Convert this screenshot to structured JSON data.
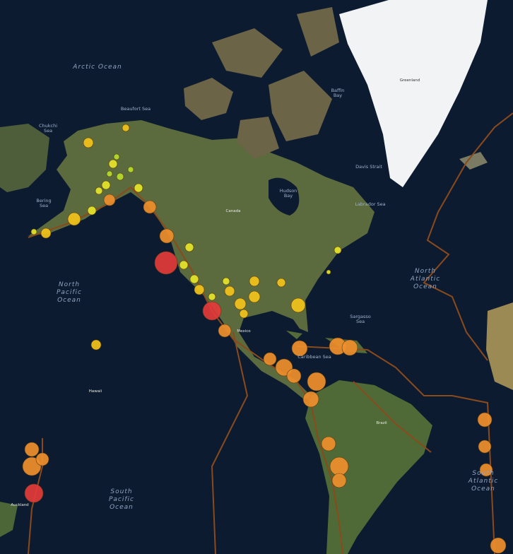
{
  "map": {
    "labels": [
      {
        "lines": [
          "Arctic Ocean"
        ],
        "kind": "ocean"
      },
      {
        "lines": [
          "Chukchi",
          "Sea"
        ],
        "kind": "sea"
      },
      {
        "lines": [
          "Beaufort Sea"
        ],
        "kind": "sea"
      },
      {
        "lines": [
          "Baffin",
          "Bay"
        ],
        "kind": "sea"
      },
      {
        "lines": [
          "Hudson",
          "Bay"
        ],
        "kind": "sea"
      },
      {
        "lines": [
          "Bering",
          "Sea"
        ],
        "kind": "sea"
      },
      {
        "lines": [
          "Davis Strait"
        ],
        "kind": "sea"
      },
      {
        "lines": [
          "Labrador Sea"
        ],
        "kind": "sea"
      },
      {
        "lines": [
          "Greenland"
        ],
        "kind": "greenland"
      },
      {
        "lines": [
          "North",
          "Pacific",
          "Ocean"
        ],
        "kind": "ocean"
      },
      {
        "lines": [
          "North",
          "Atlantic",
          "Ocean"
        ],
        "kind": "ocean"
      },
      {
        "lines": [
          "Sargasso",
          "Sea"
        ],
        "kind": "sea"
      },
      {
        "lines": [
          "Caribbean Sea"
        ],
        "kind": "sea"
      },
      {
        "lines": [
          "South",
          "Pacific",
          "Ocean"
        ],
        "kind": "ocean"
      },
      {
        "lines": [
          "South",
          "Atlantic",
          "Ocean"
        ],
        "kind": "ocean"
      },
      {
        "lines": [
          "Canada"
        ],
        "kind": "land"
      },
      {
        "lines": [
          "Mexico"
        ],
        "kind": "land"
      },
      {
        "lines": [
          "Brazil"
        ],
        "kind": "land"
      },
      {
        "lines": [
          "Hawaii"
        ],
        "kind": "land"
      },
      {
        "lines": [
          "Auckland"
        ],
        "kind": "land"
      }
    ]
  }
}
